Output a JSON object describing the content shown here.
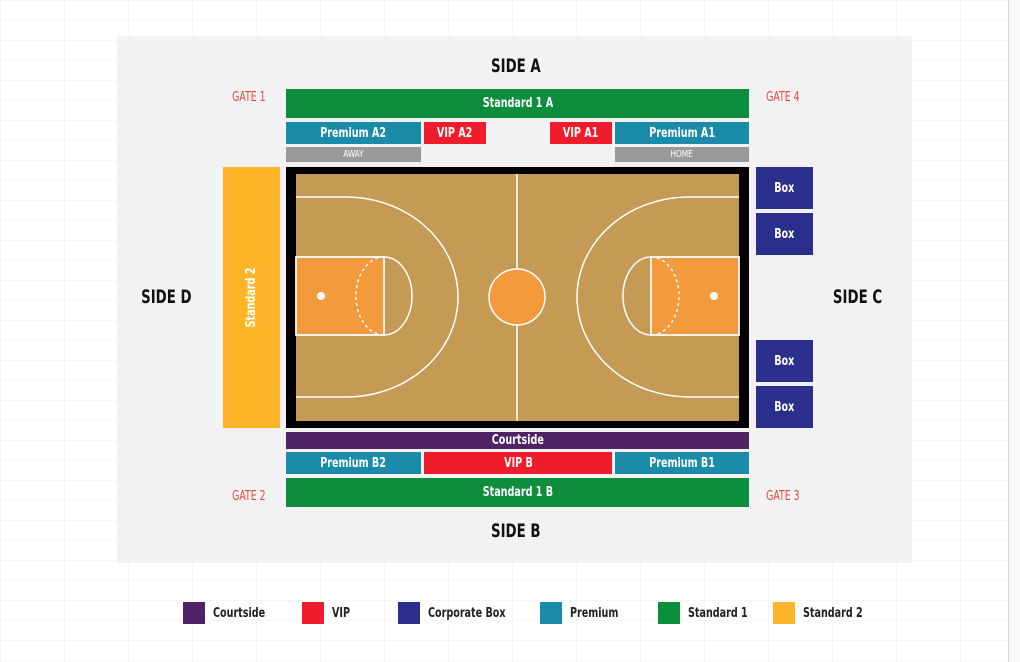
{
  "sides": {
    "a": "SIDE A",
    "b": "SIDE B",
    "c": "SIDE C",
    "d": "SIDE D"
  },
  "gates": {
    "g1": "GATE 1",
    "g2": "GATE 2",
    "g3": "GATE 3",
    "g4": "GATE 4"
  },
  "sections": {
    "standard_1a": "Standard 1 A",
    "premium_a2": "Premium A2",
    "vip_a2": "VIP A2",
    "vip_a1": "VIP A1",
    "premium_a1": "Premium A1",
    "away": "AWAY",
    "home": "HOME",
    "standard_2": "Standard 2",
    "box_1": "Box",
    "box_2": "Box",
    "box_3": "Box",
    "box_4": "Box",
    "courtside": "Courtside",
    "premium_b2": "Premium B2",
    "vip_b": "VIP B",
    "premium_b1": "Premium B1",
    "standard_1b": "Standard 1 B"
  },
  "legend": [
    {
      "label": "Courtside",
      "color": "#4f2266"
    },
    {
      "label": "VIP",
      "color": "#ef1c2b"
    },
    {
      "label": "Corporate Box",
      "color": "#2b2f8c"
    },
    {
      "label": "Premium",
      "color": "#1a8ba8"
    },
    {
      "label": "Standard 1",
      "color": "#0d8e3c"
    },
    {
      "label": "Standard 2",
      "color": "#fdb52a"
    }
  ],
  "colors": {
    "court_wood": "#c49a55",
    "key_paint": "#f39a3c",
    "court_border": "#000000",
    "panel": "#f2f2f4"
  }
}
